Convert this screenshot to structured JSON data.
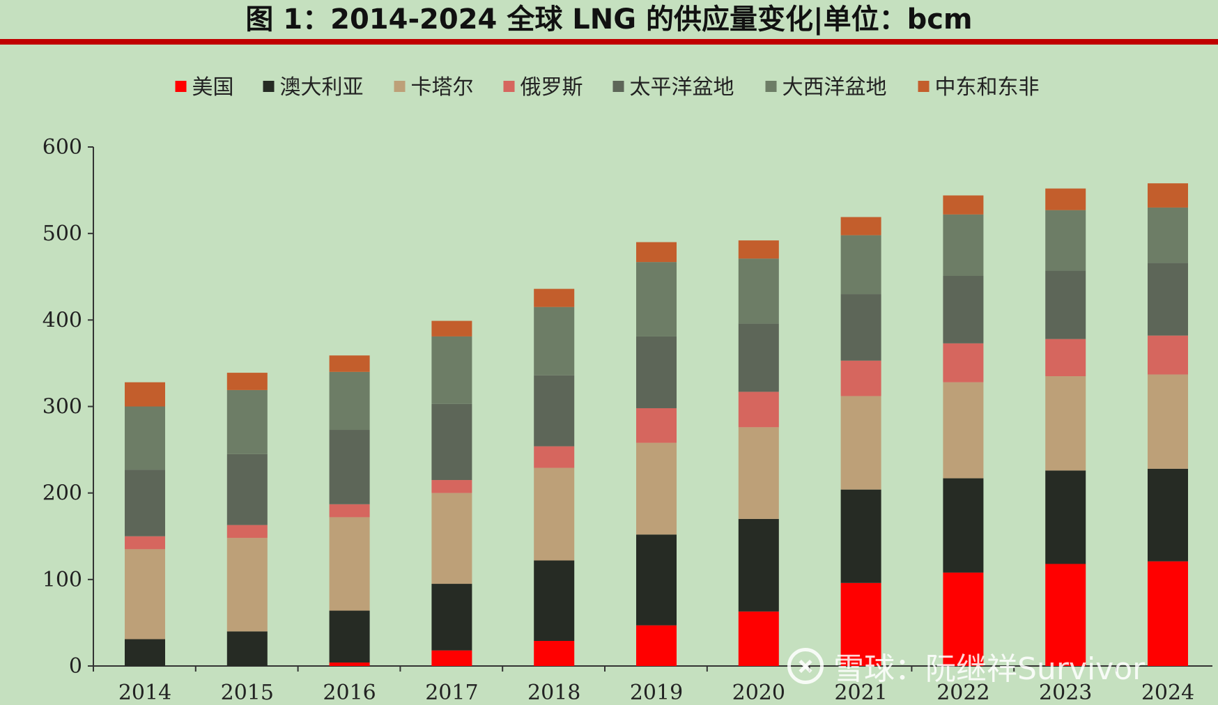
{
  "title": "图 1：2014-2024 全球 LNG 的供应量变化|单位：bcm",
  "watermark": "雪球：阮继祥Survivor",
  "chart_data": {
    "type": "bar",
    "stacked": true,
    "categories": [
      "2014",
      "2015",
      "2016",
      "2017",
      "2018",
      "2019",
      "2020",
      "2021",
      "2022",
      "2023",
      "2024"
    ],
    "ylim": [
      0,
      600
    ],
    "yticks": [
      0,
      100,
      200,
      300,
      400,
      500,
      600
    ],
    "grid": false,
    "legend_position": "top",
    "series": [
      {
        "name": "美国",
        "color": "#ff0000",
        "values": [
          0,
          0,
          4,
          18,
          29,
          47,
          63,
          96,
          108,
          118,
          121
        ]
      },
      {
        "name": "澳大利亚",
        "color": "#262b24",
        "values": [
          31,
          40,
          60,
          77,
          93,
          105,
          107,
          108,
          109,
          108,
          107
        ]
      },
      {
        "name": "卡塔尔",
        "color": "#bda078",
        "values": [
          104,
          108,
          108,
          105,
          107,
          106,
          106,
          108,
          111,
          109,
          109
        ]
      },
      {
        "name": "俄罗斯",
        "color": "#d6665e",
        "values": [
          15,
          15,
          15,
          15,
          25,
          40,
          41,
          41,
          45,
          43,
          45
        ]
      },
      {
        "name": "太平洋盆地",
        "color": "#5d6658",
        "values": [
          77,
          82,
          86,
          88,
          82,
          83,
          79,
          77,
          78,
          79,
          84
        ]
      },
      {
        "name": "大西洋盆地",
        "color": "#6d7d66",
        "values": [
          73,
          74,
          67,
          78,
          79,
          86,
          75,
          68,
          71,
          70,
          64
        ]
      },
      {
        "name": "中东和东非",
        "color": "#c35e2c",
        "values": [
          28,
          20,
          19,
          18,
          21,
          23,
          21,
          21,
          22,
          25,
          28
        ]
      }
    ]
  }
}
